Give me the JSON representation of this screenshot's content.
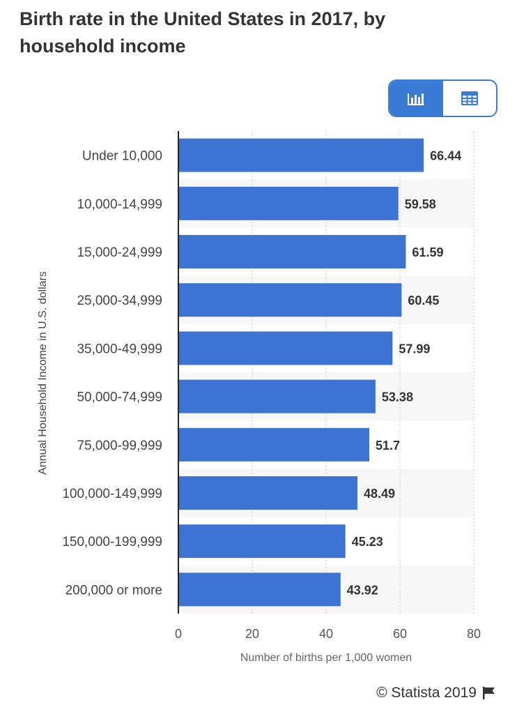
{
  "title": "Birth rate in the United States in 2017, by household income",
  "view_toggle": {
    "options": [
      {
        "icon": "bar-chart-icon",
        "active": true
      },
      {
        "icon": "table-icon",
        "active": false
      }
    ]
  },
  "footer": {
    "credit": "© Statista 2019",
    "icon": "flag-icon"
  },
  "colors": {
    "bar": "#3d74d4",
    "accent": "#3a7bd5",
    "band": "#f7f7f7"
  },
  "chart_data": {
    "type": "bar",
    "orientation": "horizontal",
    "categories": [
      "Under 10,000",
      "10,000-14,999",
      "15,000-24,999",
      "25,000-34,999",
      "35,000-49,999",
      "50,000-74,999",
      "75,000-99,999",
      "100,000-149,999",
      "150,000-199,999",
      "200,000 or more"
    ],
    "values": [
      66.44,
      59.58,
      61.59,
      60.45,
      57.99,
      53.38,
      51.7,
      48.49,
      45.23,
      43.92
    ],
    "value_labels": [
      "66.44",
      "59.58",
      "61.59",
      "60.45",
      "57.99",
      "53.38",
      "51.7",
      "48.49",
      "45.23",
      "43.92"
    ],
    "xlabel": "Number of births per 1,000 women",
    "ylabel": "Annual Household Income in U.S. dollars",
    "xlim": [
      0,
      80
    ],
    "xticks": [
      0,
      20,
      40,
      60,
      80
    ],
    "grid": true
  }
}
